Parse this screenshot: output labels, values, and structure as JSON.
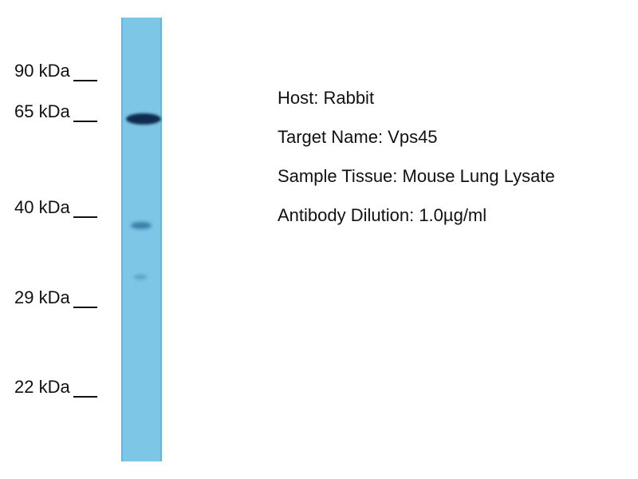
{
  "markers": [
    "90 kDa",
    "65 kDa",
    "40 kDa",
    "29 kDa",
    "22 kDa"
  ],
  "info": {
    "host": "Host: Rabbit",
    "target": "Target Name: Vps45",
    "tissue": "Sample Tissue: Mouse Lung Lysate",
    "dilution": "Antibody Dilution: 1.0µg/ml"
  },
  "colors": {
    "lane": "#7dc6e6",
    "band": "#0f2c4e"
  }
}
